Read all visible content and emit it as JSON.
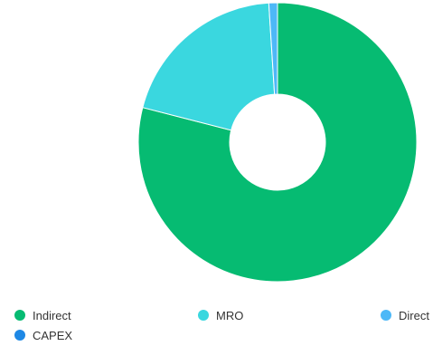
{
  "chart_data": {
    "type": "pie",
    "title": "",
    "categories": [
      "Indirect",
      "MRO",
      "Direct",
      "CAPEX"
    ],
    "values": [
      79,
      20,
      1,
      0
    ],
    "colors": [
      "#06bb72",
      "#3ad7df",
      "#4db8f7",
      "#1e88e5"
    ],
    "donut": true,
    "legend": "bottom"
  },
  "legend": {
    "items": [
      {
        "label": "Indirect",
        "color": "#06bb72"
      },
      {
        "label": "MRO",
        "color": "#3ad7df"
      },
      {
        "label": "Direct",
        "color": "#4db8f7"
      },
      {
        "label": "CAPEX",
        "color": "#1e88e5"
      }
    ]
  }
}
